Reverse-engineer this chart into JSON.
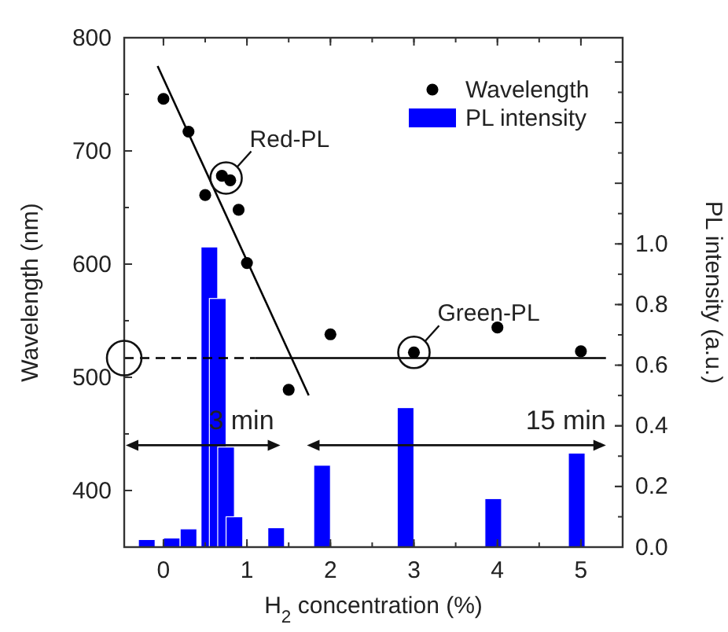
{
  "chart_data": {
    "type": "scatter",
    "xlabel": "H$_{2}$ concentration  (%)",
    "ylabel": "Wavelength  (nm)",
    "y2label": "PL intensity  (a.u.)",
    "xlim": [
      -0.47,
      5.5
    ],
    "xticks": [
      0,
      1,
      2,
      3,
      4,
      5
    ],
    "ylim": [
      350,
      800
    ],
    "yticks": [
      400,
      500,
      600,
      700,
      800
    ],
    "y2lim": [
      0,
      1.68
    ],
    "y2ticks": [
      {
        "value": 0,
        "label": "0.0"
      },
      {
        "value": 0.2,
        "label": "0.2"
      },
      {
        "value": 0.4,
        "label": "0.4"
      },
      {
        "value": 0.6,
        "label": "0.6"
      },
      {
        "value": 0.8,
        "label": "0.8"
      },
      {
        "value": 1,
        "label": "1.0"
      }
    ],
    "legend": "top right",
    "grid": false,
    "series": [
      {
        "name": "Wavelength",
        "marker": "circle",
        "color": "#000000",
        "x": [
          0,
          0.3,
          0.5,
          0.7,
          0.8,
          0.9,
          1.0,
          1.5,
          2,
          3,
          4,
          5
        ],
        "values": [
          746,
          717,
          661,
          678,
          674,
          648,
          601,
          489,
          538,
          522,
          544,
          523
        ]
      },
      {
        "name": "PL intensity",
        "type": "bar",
        "axis": "y2",
        "color": "#0000ff",
        "x": [
          -0.2,
          0.1,
          0.3,
          0.55,
          0.65,
          0.75,
          0.85,
          1.35,
          1.9,
          2.9,
          3.95,
          4.95
        ],
        "values": [
          0.025,
          0.03,
          0.06,
          0.99,
          0.82,
          0.33,
          0.1,
          0.064,
          0.27,
          0.46,
          0.16,
          0.31
        ]
      },
      {
        "type": "line",
        "color": "#000000",
        "x": [
          -0.07,
          1.74
        ],
        "values": [
          775,
          484
        ],
        "line_style": "solid"
      },
      {
        "type": "line",
        "color": "#000000",
        "x": [
          -0.47,
          1.1
        ],
        "values": [
          517,
          517
        ],
        "line_style": "dashed"
      },
      {
        "type": "line",
        "color": "#000000",
        "x": [
          1.1,
          5.3
        ],
        "values": [
          517,
          517
        ],
        "line_style": "solid"
      }
    ],
    "annotations": [
      {
        "text": "Red-PL",
        "x": 0.75,
        "y": 676
      },
      {
        "text": "Green-PL",
        "x": 3,
        "y": 522
      },
      "3 min",
      "15 min"
    ]
  }
}
